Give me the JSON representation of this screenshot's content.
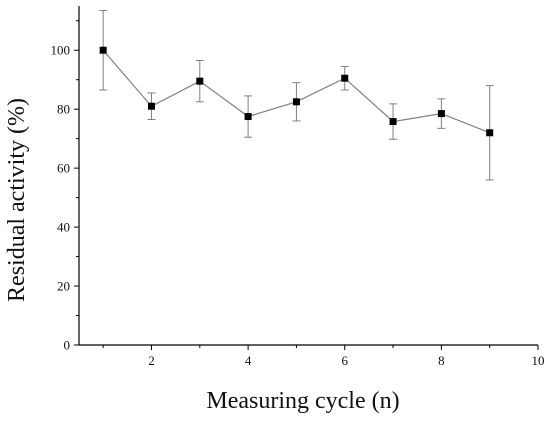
{
  "chart_data": {
    "type": "line",
    "xlabel": "Measuring cycle (n)",
    "ylabel": "Residual activity (%)",
    "xlim": [
      0.5,
      10
    ],
    "ylim": [
      0,
      115
    ],
    "x_ticks": [
      2,
      4,
      6,
      8,
      10
    ],
    "y_ticks": [
      0,
      20,
      40,
      60,
      80,
      100
    ],
    "marker": "square",
    "error_bars": true,
    "grid": false,
    "legend": "none",
    "colors": {
      "line": "#808080",
      "marker": "#000000",
      "axis": "#000000"
    },
    "series": [
      {
        "x": [
          1,
          2,
          3,
          4,
          5,
          6,
          7,
          8,
          9
        ],
        "values": [
          100.0,
          81.0,
          89.5,
          77.5,
          82.5,
          90.5,
          75.8,
          78.5,
          72.0
        ],
        "error": [
          13.5,
          4.5,
          7.0,
          7.0,
          6.5,
          4.0,
          6.0,
          5.0,
          16.0
        ]
      }
    ]
  }
}
